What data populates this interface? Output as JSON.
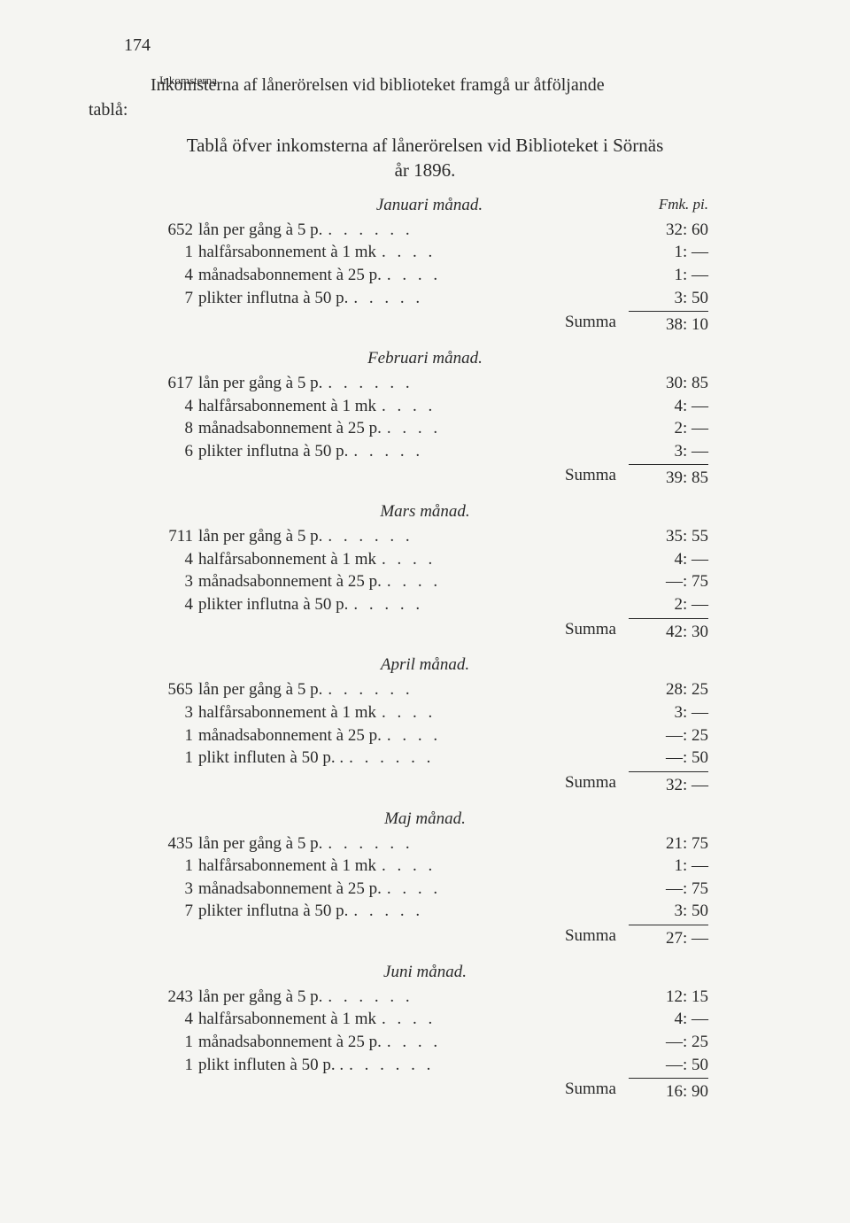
{
  "page_number": "174",
  "margin_note": "Inkomsterna.",
  "intro_text": "Inkomsterna af lånerörelsen vid biblioteket framgå ur åtföljande",
  "tabla_word": "tablå:",
  "title_line1": "Tablå öfver inkomsterna af lånerörelsen vid Biblioteket i Sörnäs",
  "title_line2": "år 1896.",
  "currency_header": "Fmk. pi.",
  "summa_label": "Summa",
  "months": [
    {
      "name": "Januari månad.",
      "show_currency": true,
      "rows": [
        {
          "count": "652",
          "desc": "lån per gång à 5 p.",
          "dots": ". . . . . .",
          "value": "32: 60"
        },
        {
          "count": "1",
          "desc": "halfårsabonnement à 1 mk",
          "dots": ". . . .",
          "value": "1: —"
        },
        {
          "count": "4",
          "desc": "månadsabonnement à 25 p.",
          "dots": ". . . .",
          "value": "1: —"
        },
        {
          "count": "7",
          "desc": "plikter influtna à 50 p.",
          "dots": ". . . . .",
          "value": "3: 50"
        }
      ],
      "summa": "38: 10"
    },
    {
      "name": "Februari månad.",
      "rows": [
        {
          "count": "617",
          "desc": "lån per gång à 5 p.",
          "dots": ". . . . . .",
          "value": "30: 85"
        },
        {
          "count": "4",
          "desc": "halfårsabonnement à 1 mk",
          "dots": ". . . .",
          "value": "4: —"
        },
        {
          "count": "8",
          "desc": "månadsabonnement à 25 p.",
          "dots": ". . . .",
          "value": "2: —"
        },
        {
          "count": "6",
          "desc": "plikter influtna à 50 p.",
          "dots": ". . . . .",
          "value": "3: —"
        }
      ],
      "summa": "39: 85"
    },
    {
      "name": "Mars månad.",
      "rows": [
        {
          "count": "711",
          "desc": "lån per gång à 5 p.",
          "dots": ". . . . . .",
          "value": "35: 55"
        },
        {
          "count": "4",
          "desc": "halfårsabonnement à 1 mk",
          "dots": ". . . .",
          "value": "4: —"
        },
        {
          "count": "3",
          "desc": "månadsabonnement à 25 p.",
          "dots": ". . . .",
          "value": "—: 75"
        },
        {
          "count": "4",
          "desc": "plikter influtna à 50 p.",
          "dots": ". . . . .",
          "value": "2: —"
        }
      ],
      "summa": "42: 30"
    },
    {
      "name": "April månad.",
      "rows": [
        {
          "count": "565",
          "desc": "lån per gång à 5 p.",
          "dots": ". . . . . .",
          "value": "28: 25"
        },
        {
          "count": "3",
          "desc": "halfårsabonnement à 1 mk",
          "dots": ". . . .",
          "value": "3: —"
        },
        {
          "count": "1",
          "desc": "månadsabonnement à 25 p.",
          "dots": ". . . .",
          "value": "—: 25"
        },
        {
          "count": "1",
          "desc": "plikt influten à 50 p. .",
          "dots": ". . . . . .",
          "value": "—: 50"
        }
      ],
      "summa": "32: —"
    },
    {
      "name": "Maj månad.",
      "rows": [
        {
          "count": "435",
          "desc": "lån per gång à 5 p.",
          "dots": ". . . . . .",
          "value": "21: 75"
        },
        {
          "count": "1",
          "desc": "halfårsabonnement à 1 mk",
          "dots": ". . . .",
          "value": "1: —"
        },
        {
          "count": "3",
          "desc": "månadsabonnement à 25 p.",
          "dots": ". . . .",
          "value": "—: 75"
        },
        {
          "count": "7",
          "desc": "plikter influtna à 50 p.",
          "dots": ". . . . .",
          "value": "3: 50"
        }
      ],
      "summa": "27: —"
    },
    {
      "name": "Juni månad.",
      "rows": [
        {
          "count": "243",
          "desc": "lån per gång à 5 p.",
          "dots": ". . . . . .",
          "value": "12: 15"
        },
        {
          "count": "4",
          "desc": "halfårsabonnement à 1 mk",
          "dots": ". . . .",
          "value": "4: —"
        },
        {
          "count": "1",
          "desc": "månadsabonnement à 25 p.",
          "dots": ". . . .",
          "value": "—: 25"
        },
        {
          "count": "1",
          "desc": "plikt influten à 50 p. .",
          "dots": ". . . . . .",
          "value": "—: 50"
        }
      ],
      "summa": "16: 90"
    }
  ]
}
